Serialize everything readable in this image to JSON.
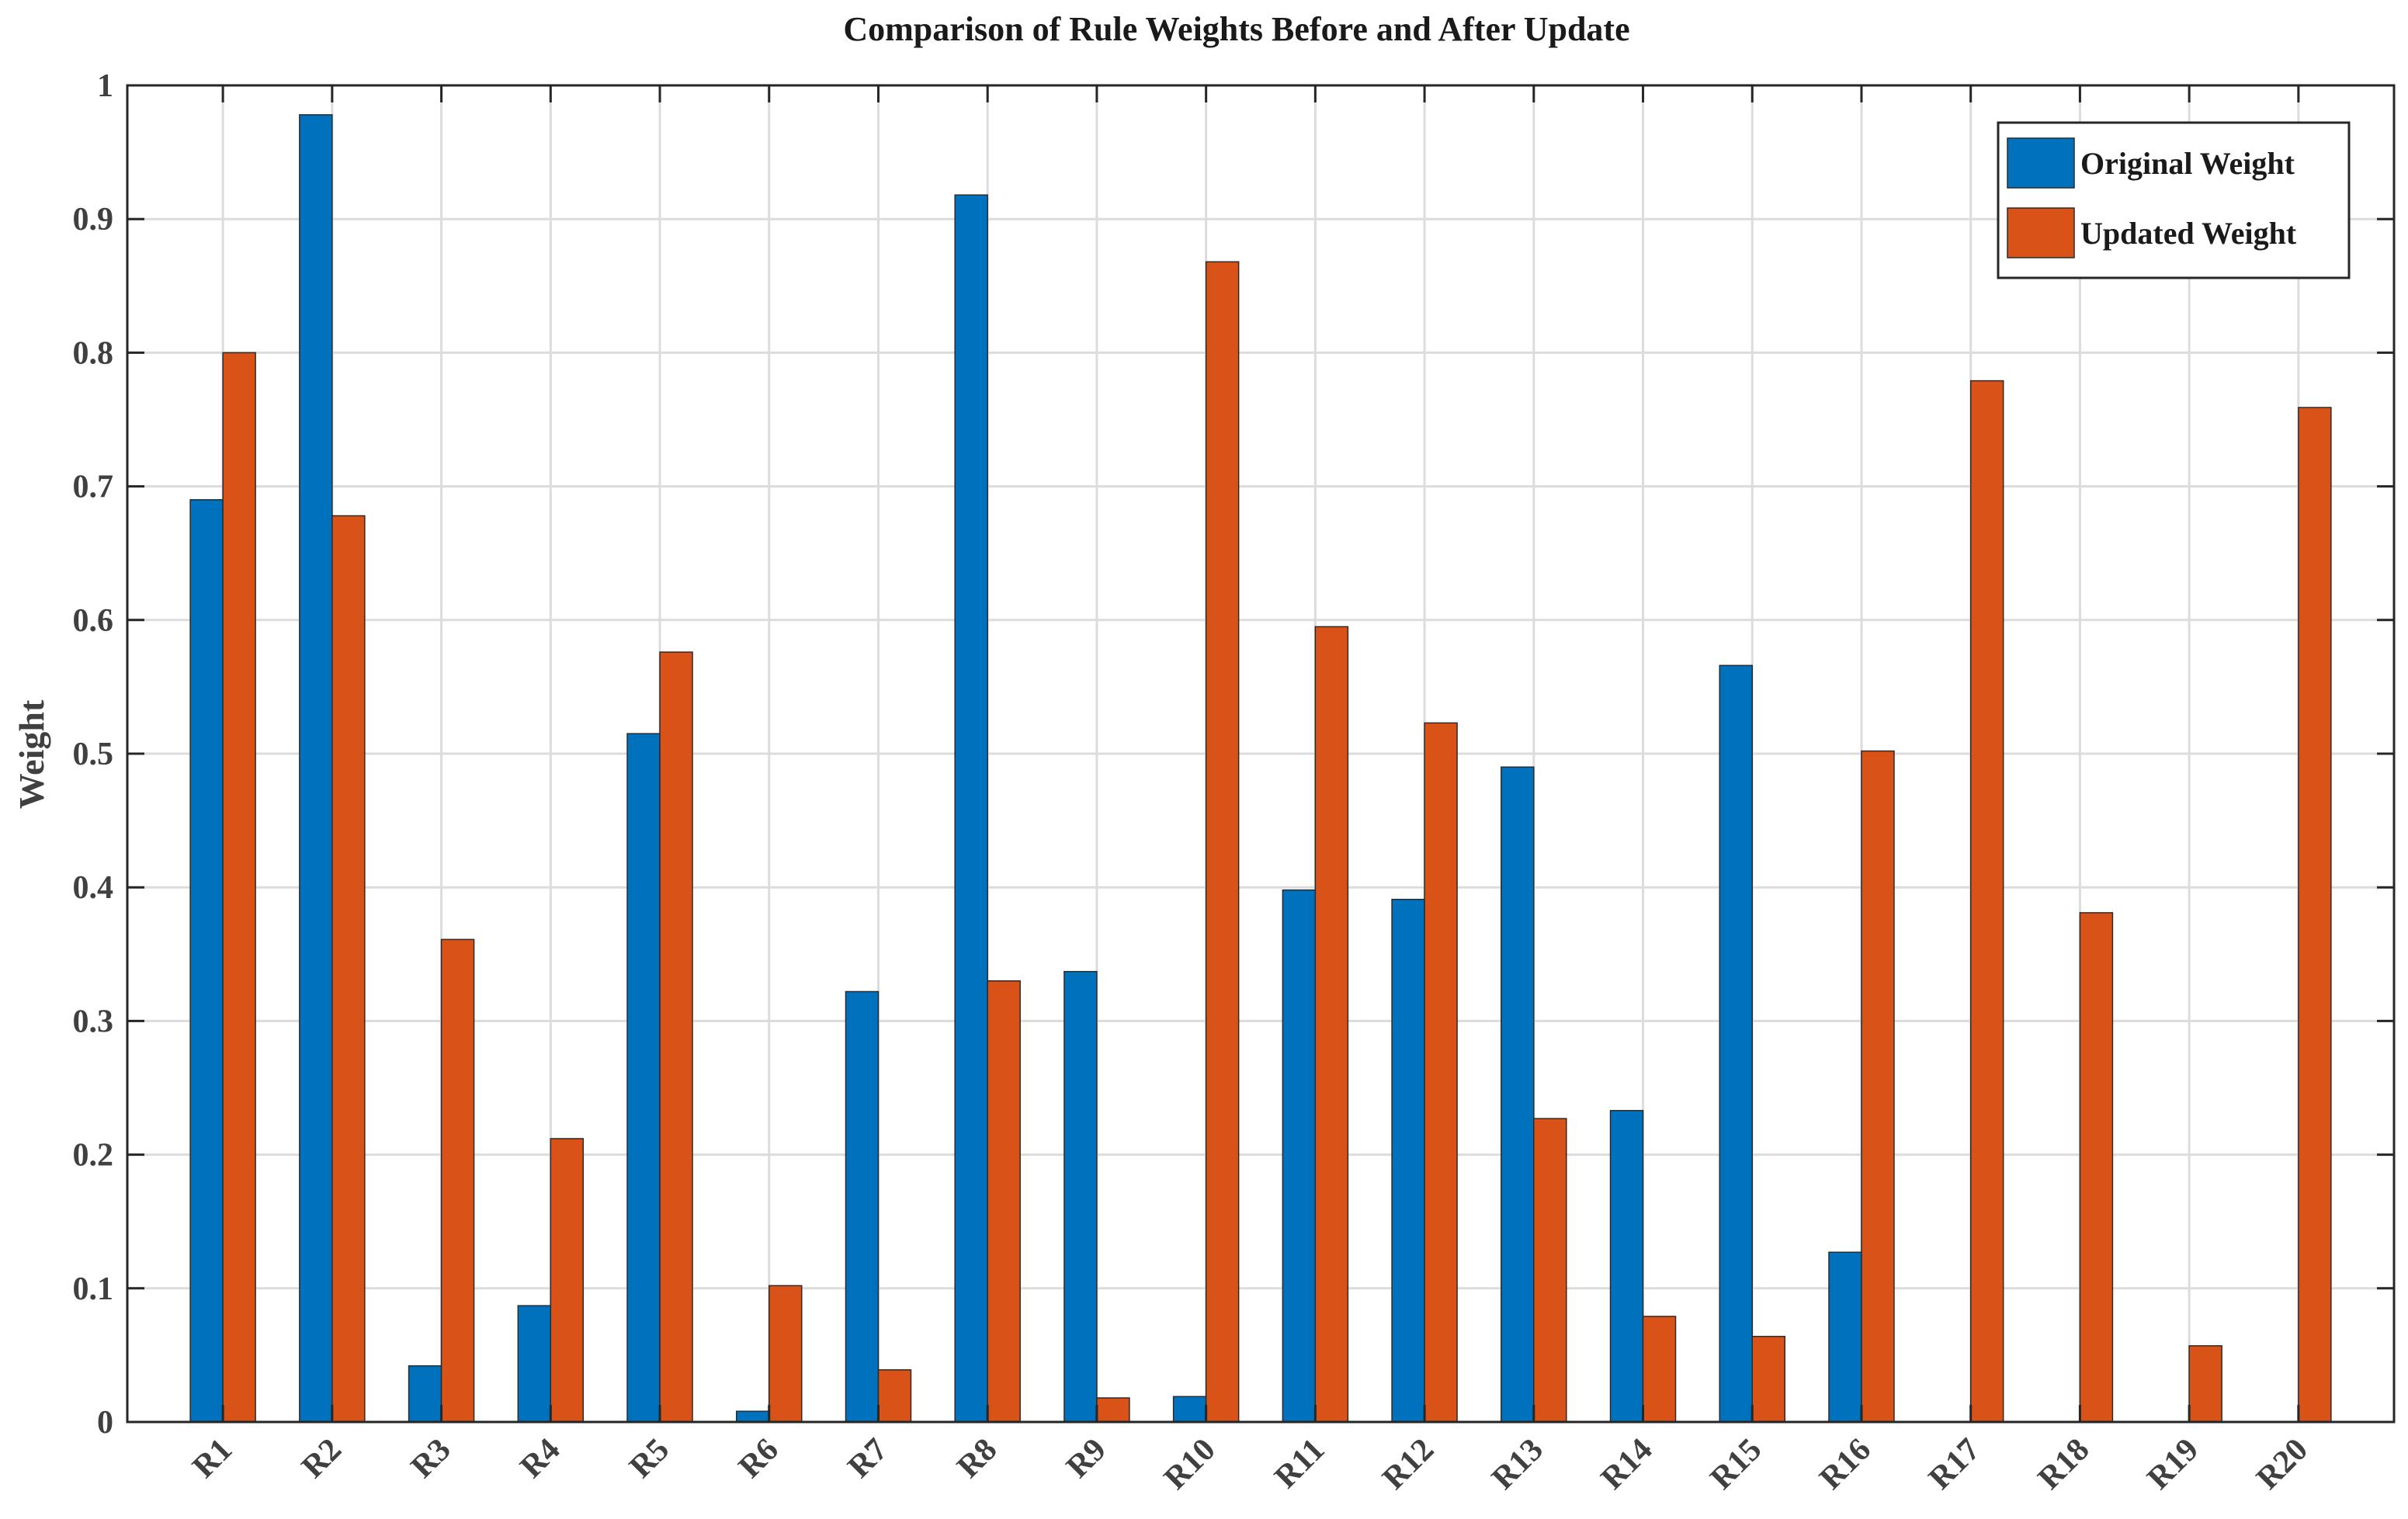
{
  "chart_data": {
    "type": "bar",
    "title": "Comparison of Rule Weights Before and After Update",
    "xlabel": "",
    "ylabel": "Weight",
    "ylim": [
      0,
      1
    ],
    "yticks": [
      "0",
      "0.1",
      "0.2",
      "0.3",
      "0.4",
      "0.5",
      "0.6",
      "0.7",
      "0.8",
      "0.9",
      "1"
    ],
    "grid": true,
    "legend_position": "top-right",
    "categories": [
      "R1",
      "R2",
      "R3",
      "R4",
      "R5",
      "R6",
      "R7",
      "R8",
      "R9",
      "R10",
      "R11",
      "R12",
      "R13",
      "R14",
      "R15",
      "R16",
      "R17",
      "R18",
      "R19",
      "R20"
    ],
    "series": [
      {
        "name": "Original Weight",
        "color": "#0072BD",
        "values": [
          0.69,
          0.978,
          0.042,
          0.087,
          0.515,
          0.008,
          0.322,
          0.918,
          0.337,
          0.019,
          0.398,
          0.391,
          0.49,
          0.233,
          0.566,
          0.127,
          0,
          0,
          0,
          0
        ]
      },
      {
        "name": "Updated Weight",
        "color": "#D95319",
        "values": [
          0.8,
          0.678,
          0.361,
          0.212,
          0.576,
          0.102,
          0.039,
          0.33,
          0.018,
          0.868,
          0.595,
          0.523,
          0.227,
          0.079,
          0.064,
          0.502,
          0.779,
          0.381,
          0.057,
          0.759
        ]
      }
    ]
  }
}
